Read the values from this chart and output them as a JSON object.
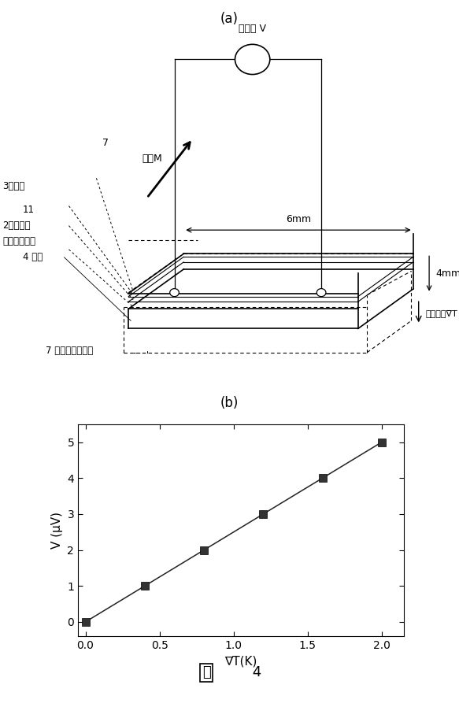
{
  "panel_a_label": "(a)",
  "panel_b_label": "(b)",
  "diagram": {
    "voltmeter_label": "起電力 V",
    "dim_6mm": "6mm",
    "dim_4mm": "4mm",
    "mag_label": "磁化M",
    "grad_label": "温度勾配∇T",
    "label_3": "3起電膜",
    "label_11": "11",
    "label_2a": "2柱状結晶",
    "label_2b": "フェライト層",
    "label_4": "4 基体",
    "label_7a": "7",
    "label_7b": "7 温度差印加手段"
  },
  "graph": {
    "x_data": [
      0.0,
      0.4,
      0.8,
      1.2,
      1.6,
      2.0
    ],
    "y_data": [
      0.0,
      1.0,
      2.0,
      3.0,
      4.0,
      5.0
    ],
    "xlabel": "∇T(K)",
    "ylabel": "V (μV)",
    "xlim": [
      -0.05,
      2.15
    ],
    "ylim": [
      -0.4,
      5.5
    ],
    "xticks": [
      0,
      0.5,
      1.0,
      1.5,
      2.0
    ],
    "yticks": [
      0,
      1,
      2,
      3,
      4,
      5
    ],
    "marker": "s",
    "marker_color": "#333333",
    "line_color": "#222222",
    "marker_size": 7
  },
  "bg_color": "#ffffff",
  "text_color": "#000000"
}
